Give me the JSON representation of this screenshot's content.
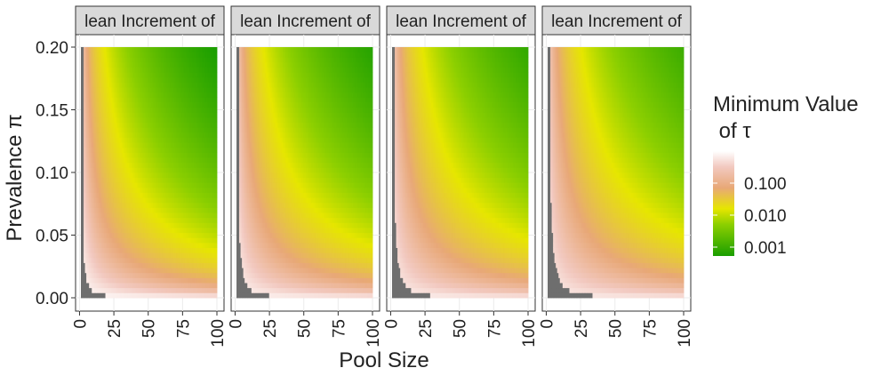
{
  "chart_data": {
    "type": "heatmap",
    "panel_strip_text": "lean Increment of",
    "xlabel": "Pool Size",
    "ylabel": "Prevalence π",
    "x_range": [
      1,
      100
    ],
    "y_range": [
      0.0,
      0.2
    ],
    "x_ticks": [
      "0",
      "25",
      "50",
      "75",
      "100"
    ],
    "y_ticks": [
      "0.00",
      "0.05",
      "0.10",
      "0.15",
      "0.20"
    ],
    "legend": {
      "title_line1": "Minimum Value",
      "title_line2": " of τ",
      "labels": [
        "0.100",
        "0.010",
        "0.001"
      ],
      "scale": "log10",
      "placement": "right",
      "colors": [
        "#ffffff",
        "#e8a877",
        "#e6e600",
        "#1a9e00"
      ]
    },
    "na_color": "#6e6e6e",
    "grid": true,
    "panels": [
      {
        "strip": "lean Increment of",
        "na_scale": 6.0,
        "shift": 0.0
      },
      {
        "strip": "lean Increment of",
        "na_scale": 8.0,
        "shift": -0.35
      },
      {
        "strip": "lean Increment of",
        "na_scale": 9.5,
        "shift": -0.55
      },
      {
        "strip": "lean Increment of",
        "na_scale": 11.0,
        "shift": -0.7
      }
    ]
  }
}
